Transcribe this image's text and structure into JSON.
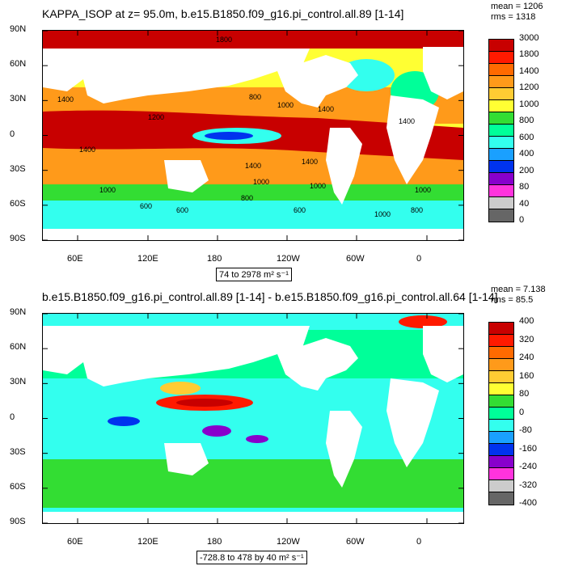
{
  "chart_data": [
    {
      "type": "heatmap",
      "title": "KAPPA_ISOP at z=  95.0m, b.e15.B1850.f09_g16.pi_control.all.89 [1-14]",
      "stats": [
        "mean = 1206",
        "rms = 1318"
      ],
      "range_label": "74 to 2978 m² s⁻¹",
      "xticks": [
        "60E",
        "120E",
        "180",
        "120W",
        "60W",
        "0"
      ],
      "yticks": [
        "90N",
        "60N",
        "30N",
        "0",
        "30S",
        "60S",
        "90S"
      ],
      "colorbar": {
        "labels": [
          "3000",
          "1800",
          "1400",
          "1200",
          "1000",
          "800",
          "600",
          "400",
          "200",
          "80",
          "40",
          "0"
        ],
        "colors": [
          "#c80000",
          "#ff1a00",
          "#ff6a00",
          "#ff9a1a",
          "#ffcc33",
          "#ffff33",
          "#33dd33",
          "#00ff99",
          "#33ffee",
          "#1aa0ff",
          "#0033ee",
          "#8800cc",
          "#ff33dd",
          "#cccccc",
          "#666666"
        ]
      },
      "contour_labels": [
        "1800",
        "1400",
        "1400",
        "1200",
        "800",
        "1000",
        "1400",
        "1400",
        "1000",
        "1000",
        "1400",
        "600",
        "1000",
        "1400",
        "800",
        "1000",
        "600",
        "600",
        "1000",
        "800"
      ]
    },
    {
      "type": "heatmap",
      "title": "b.e15.B1850.f09_g16.pi_control.all.89 [1-14] - b.e15.B1850.f09_g16.pi_control.all.64 [1-14]",
      "stats": [
        "mean = 7.138",
        "rms = 85.5"
      ],
      "range_label": "-728.8 to 478 by 40 m² s⁻¹",
      "xticks": [
        "60E",
        "120E",
        "180",
        "120W",
        "60W",
        "0"
      ],
      "yticks": [
        "90N",
        "60N",
        "30N",
        "0",
        "30S",
        "60S",
        "90S"
      ],
      "colorbar": {
        "labels": [
          "400",
          "320",
          "240",
          "160",
          "80",
          "0",
          "-80",
          "-160",
          "-240",
          "-320",
          "-400"
        ],
        "colors": [
          "#c80000",
          "#ff1a00",
          "#ff6a00",
          "#ff9a1a",
          "#ffcc33",
          "#ffff33",
          "#33dd33",
          "#00ff99",
          "#33ffee",
          "#1aa0ff",
          "#0033ee",
          "#8800cc",
          "#ff33dd",
          "#cccccc",
          "#666666"
        ]
      }
    }
  ]
}
